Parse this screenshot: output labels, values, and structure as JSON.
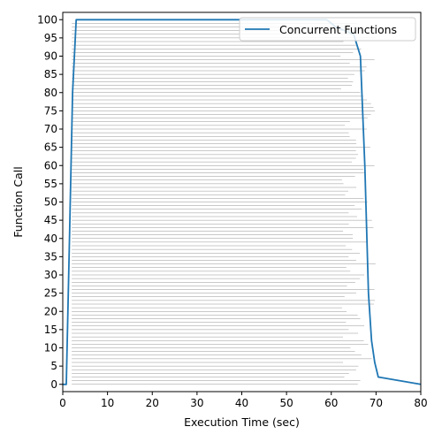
{
  "chart_data": {
    "type": "line",
    "title": "",
    "xlabel": "Execution Time (sec)",
    "ylabel": "Function Call",
    "xlim": [
      0,
      80
    ],
    "ylim": [
      -2,
      102
    ],
    "xticks": [
      0,
      10,
      20,
      30,
      40,
      50,
      60,
      70,
      80
    ],
    "yticks": [
      0,
      5,
      10,
      15,
      20,
      25,
      30,
      35,
      40,
      45,
      50,
      55,
      60,
      65,
      70,
      75,
      80,
      85,
      90,
      95,
      100
    ],
    "legend": {
      "placement": "top-right",
      "entries": [
        "Concurrent Functions"
      ]
    },
    "series": [
      {
        "name": "Concurrent Functions",
        "color": "#1f77b4",
        "x": [
          0,
          0.8,
          1.5,
          2.2,
          3.0,
          40,
          59,
          61,
          63,
          65,
          66.5,
          67.5,
          68.3,
          69,
          69.7,
          70.5,
          80
        ],
        "y": [
          0,
          0,
          40,
          80,
          100,
          100,
          100,
          98,
          97,
          96,
          90,
          60,
          25,
          12,
          6,
          2,
          0
        ]
      }
    ],
    "function_call_spans": {
      "color": "#888888",
      "count": 100,
      "start_sec": 2,
      "end_sec_min": 62,
      "end_sec_max": 70
    }
  }
}
